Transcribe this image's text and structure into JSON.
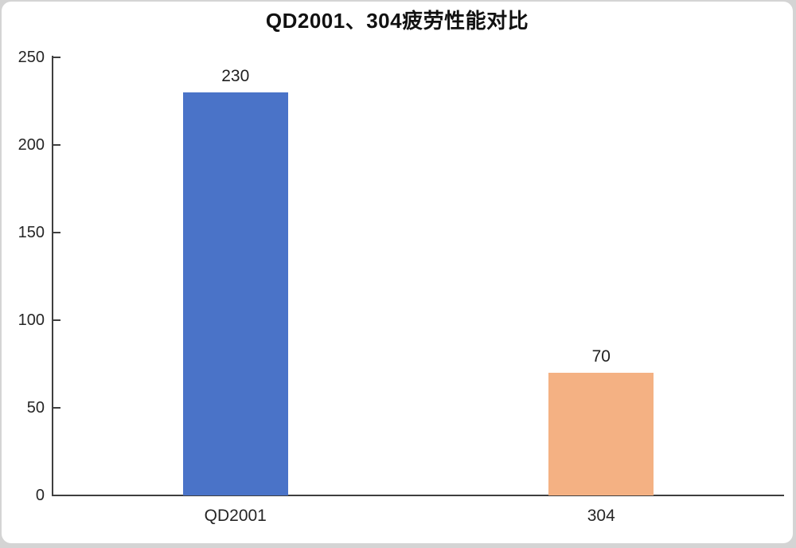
{
  "chart_data": {
    "type": "bar",
    "title": "QD2001、304疲劳性能对比",
    "categories": [
      "QD2001",
      "304"
    ],
    "values": [
      230,
      70
    ],
    "data_labels": [
      "230",
      "70"
    ],
    "bar_colors": [
      "#4a73c8",
      "#f4b183"
    ],
    "xlabel": "",
    "ylabel": "",
    "ylim": [
      0,
      250
    ],
    "yticks": [
      0,
      50,
      100,
      150,
      200,
      250
    ],
    "grid": false,
    "legend": false
  },
  "colors": {
    "axis": "#3f3f3f",
    "card_background": "#ffffff",
    "page_background": "#d4d4d4",
    "title_text": "#111111",
    "label_text": "#262626"
  }
}
